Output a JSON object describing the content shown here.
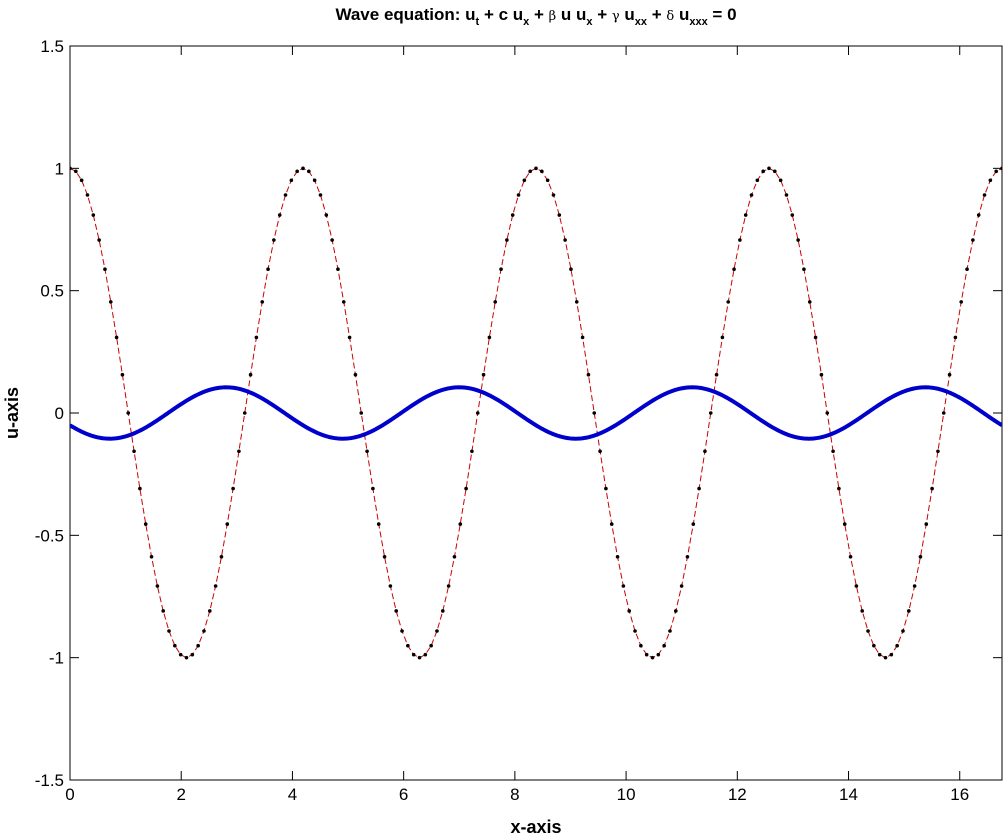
{
  "chart_data": {
    "type": "line",
    "title": {
      "prefix": "Wave equation: ",
      "parts": [
        {
          "text": "u",
          "greek": false
        },
        {
          "text": "t",
          "sub": true
        },
        {
          "text": " + c u",
          "greek": false
        },
        {
          "text": "x",
          "sub": true
        },
        {
          "text": " + ",
          "greek": false
        },
        {
          "text": "β",
          "greek": true
        },
        {
          "text": " u u",
          "greek": false
        },
        {
          "text": "x",
          "sub": true
        },
        {
          "text": " + ",
          "greek": false
        },
        {
          "text": "γ",
          "greek": true
        },
        {
          "text": " u",
          "greek": false
        },
        {
          "text": "xx",
          "sub": true
        },
        {
          "text": " + ",
          "greek": false
        },
        {
          "text": "δ",
          "greek": true
        },
        {
          "text": " u",
          "greek": false
        },
        {
          "text": "xxx",
          "sub": true
        },
        {
          "text": " = 0",
          "greek": false
        }
      ]
    },
    "xlabel": "x-axis",
    "ylabel": "u-axis",
    "xlim": [
      0,
      16.76
    ],
    "ylim": [
      -1.5,
      1.5
    ],
    "xticks": [
      0,
      2,
      4,
      6,
      8,
      10,
      12,
      14,
      16
    ],
    "yticks": [
      -1.5,
      -1,
      -0.5,
      0,
      0.5,
      1,
      1.5
    ],
    "xtick_labels": [
      "0",
      "2",
      "4",
      "6",
      "8",
      "10",
      "12",
      "14",
      "16"
    ],
    "ytick_labels": [
      "-1.5",
      "-1",
      "-0.5",
      "0",
      "0.5",
      "1",
      "1.5"
    ],
    "grid": false,
    "legend": "none",
    "series": [
      {
        "style": "dashed line with dot markers",
        "color": "#cc0000",
        "marker_color": "#000000",
        "amplitude": 1.0,
        "period": 4.19,
        "phase_shift": 0.0,
        "form": "cos",
        "x_start": 0,
        "x_end": 16.76,
        "num_points": 161
      },
      {
        "style": "thick solid line",
        "color": "#0000cc",
        "amplitude": 0.105,
        "period": 4.19,
        "phase_shift": 2.81,
        "form": "cos",
        "x_start": 0,
        "x_end": 16.76,
        "num_points": 600
      }
    ]
  }
}
